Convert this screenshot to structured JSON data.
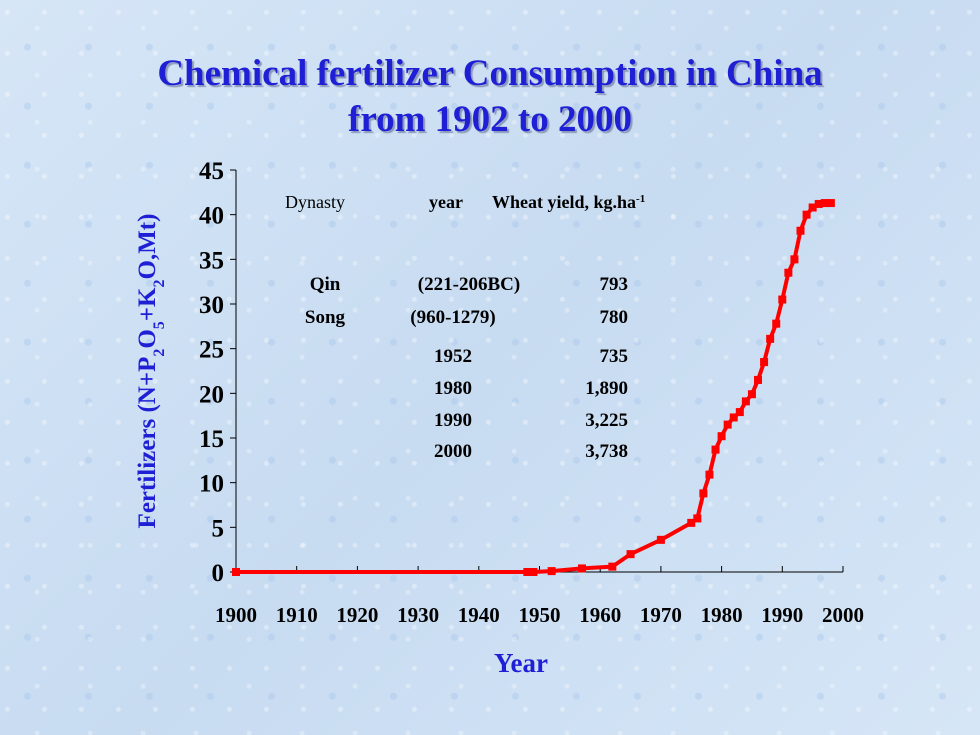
{
  "page": {
    "title_line1": "Chemical fertilizer Consumption in China",
    "title_line2": "from 1902 to 2000"
  },
  "chart_data": {
    "type": "line",
    "xlabel": "Year",
    "ylabel": "Fertilizers (N+P2O5+K2O,Mt)",
    "ylabel_parts": [
      {
        "text": "Fertilizers (N+P",
        "sub": false
      },
      {
        "text": "2",
        "sub": true
      },
      {
        "text": "O",
        "sub": false
      },
      {
        "text": "5",
        "sub": true
      },
      {
        "text": "+K",
        "sub": false
      },
      {
        "text": "2",
        "sub": true
      },
      {
        "text": "O,Mt)",
        "sub": false
      }
    ],
    "xlim": [
      1900,
      2000
    ],
    "ylim": [
      0,
      45
    ],
    "x_ticks": [
      1900,
      1910,
      1920,
      1930,
      1940,
      1950,
      1960,
      1970,
      1980,
      1990,
      2000
    ],
    "y_ticks": [
      0,
      5,
      10,
      15,
      20,
      25,
      30,
      35,
      40,
      45
    ],
    "grid": false,
    "legend": "none",
    "colors": {
      "line": "#ff0000",
      "axis": "#000000",
      "title": "#1f1fd6",
      "axis_label": "#1f1fd6"
    },
    "series": [
      {
        "x": [
          1900,
          1948,
          1949,
          1952,
          1957,
          1962,
          1965,
          1970,
          1975,
          1976,
          1977,
          1978,
          1979,
          1980,
          1981,
          1982,
          1983,
          1984,
          1985,
          1986,
          1987,
          1988,
          1989,
          1990,
          1991,
          1992,
          1993,
          1994,
          1995,
          1996,
          1997,
          1998
        ],
        "y": [
          0,
          0,
          0,
          0.1,
          0.4,
          0.6,
          2.0,
          3.6,
          5.5,
          6.0,
          8.8,
          10.9,
          13.7,
          15.2,
          16.5,
          17.3,
          17.9,
          19.1,
          19.9,
          21.5,
          23.5,
          26.1,
          27.8,
          30.5,
          33.5,
          35.0,
          38.2,
          40.0,
          40.8,
          41.2,
          41.3,
          41.3
        ]
      }
    ],
    "inset_table": {
      "headers": {
        "dynasty": "Dynasty",
        "year": "year",
        "yield_main": "Wheat yield, kg.ha",
        "yield_sup": "-1"
      },
      "rows": [
        {
          "dynasty": "Qin",
          "year": "(221-206BC)",
          "yield": "793"
        },
        {
          "dynasty": "Song",
          "year": "(960-1279)",
          "yield": "780"
        },
        {
          "dynasty": "",
          "year": "1952",
          "yield": "735"
        },
        {
          "dynasty": "",
          "year": "1980",
          "yield": "1,890"
        },
        {
          "dynasty": "",
          "year": "1990",
          "yield": "3,225"
        },
        {
          "dynasty": "",
          "year": "2000",
          "yield": "3,738"
        }
      ]
    }
  }
}
